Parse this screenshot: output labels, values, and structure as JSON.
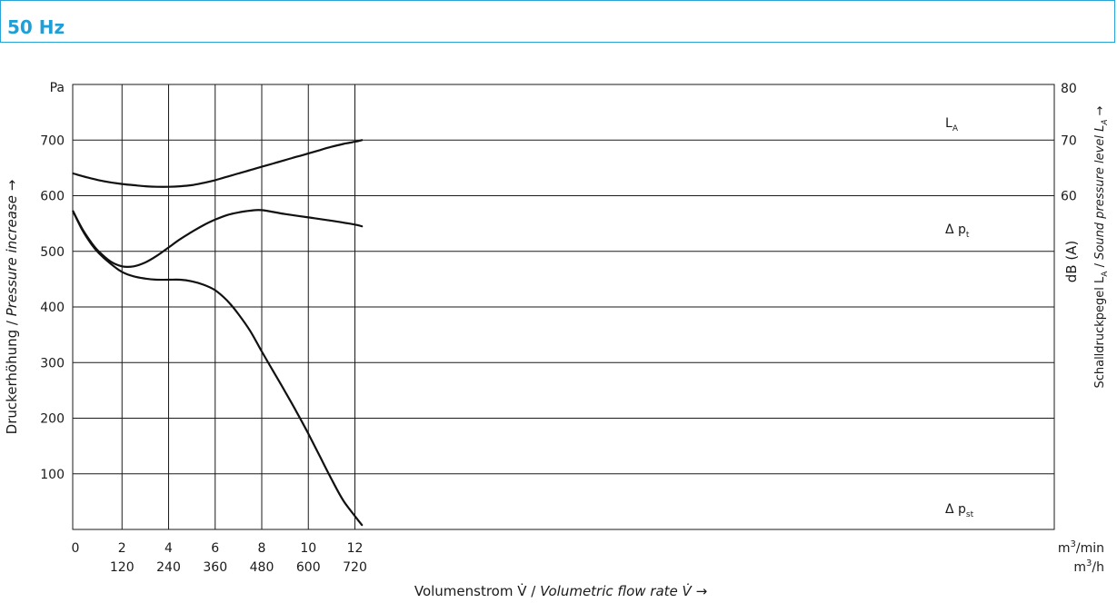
{
  "header": {
    "title": "50 Hz",
    "accent_color": "#1f9fd8"
  },
  "chart_data": {
    "type": "line",
    "x_primary": {
      "ticks": [
        0,
        2,
        4,
        6,
        8,
        10,
        12
      ],
      "unit": "m³/min"
    },
    "x_secondary": {
      "ticks": [
        120,
        240,
        360,
        480,
        600,
        720
      ],
      "unit": "m³/h"
    },
    "xlabel": {
      "de": "Volumenstrom V̇ / ",
      "en": "Volumetric flow rate V̇",
      "arrow": " →"
    },
    "y_left": {
      "ticks": [
        100,
        200,
        300,
        400,
        500,
        600,
        700
      ],
      "unit": "Pa",
      "ylim": [
        0,
        800
      ]
    },
    "ylabel_left": {
      "de": "Druckerhöhung / ",
      "en": "Pressure increase",
      "arrow": " →"
    },
    "y_right": {
      "ticks": [
        60,
        70,
        80
      ],
      "unit": "dB (A)",
      "ylim": [
        0,
        80
      ]
    },
    "ylabel_right": {
      "de": "Schalldruckpegel L",
      "de_sub": "A",
      "sep": " / ",
      "en": "Sound pressure level L",
      "en_sub": "A",
      "arrow": " →"
    },
    "xlim": [
      0,
      12.4
    ],
    "grid": true,
    "series": [
      {
        "name": "L",
        "name_sub": "A",
        "axis": "right",
        "x": [
          -0.1,
          0.5,
          1,
          1.5,
          2,
          2.5,
          3,
          3.5,
          4,
          4.5,
          5,
          5.5,
          6,
          6.5,
          7,
          7.5,
          8,
          8.5,
          9,
          9.5,
          10,
          10.5,
          11,
          11.5,
          12,
          12.3
        ],
        "y": [
          64,
          63.3,
          62.8,
          62.4,
          62.1,
          61.9,
          61.7,
          61.6,
          61.6,
          61.7,
          61.9,
          62.3,
          62.8,
          63.4,
          64.0,
          64.6,
          65.2,
          65.8,
          66.4,
          67.0,
          67.6,
          68.2,
          68.8,
          69.3,
          69.7,
          70.0
        ]
      },
      {
        "name": "Δ p",
        "name_sub": "t",
        "axis": "left",
        "x": [
          -0.1,
          0.3,
          0.7,
          1,
          1.5,
          2,
          2.5,
          3,
          3.5,
          4,
          4.5,
          5,
          5.5,
          6,
          6.5,
          7,
          7.5,
          8,
          9,
          10,
          11,
          12,
          12.3
        ],
        "y": [
          572,
          540,
          515,
          500,
          482,
          473,
          473,
          480,
          492,
          507,
          522,
          535,
          547,
          557,
          565,
          570,
          573,
          574,
          567,
          561,
          555,
          548,
          545
        ]
      },
      {
        "name": "Δ p",
        "name_sub": "st",
        "axis": "left",
        "x": [
          -0.1,
          0.3,
          0.7,
          1,
          1.5,
          2,
          2.5,
          3,
          3.5,
          4,
          4.5,
          5,
          5.5,
          6,
          6.5,
          7,
          7.5,
          8,
          8.5,
          9,
          9.5,
          10,
          10.5,
          11,
          11.5,
          12,
          12.3
        ],
        "y": [
          572,
          538,
          512,
          497,
          478,
          463,
          455,
          451,
          449,
          449,
          449,
          446,
          440,
          430,
          412,
          387,
          357,
          320,
          284,
          248,
          211,
          172,
          131,
          90,
          52,
          24,
          8
        ]
      }
    ]
  }
}
